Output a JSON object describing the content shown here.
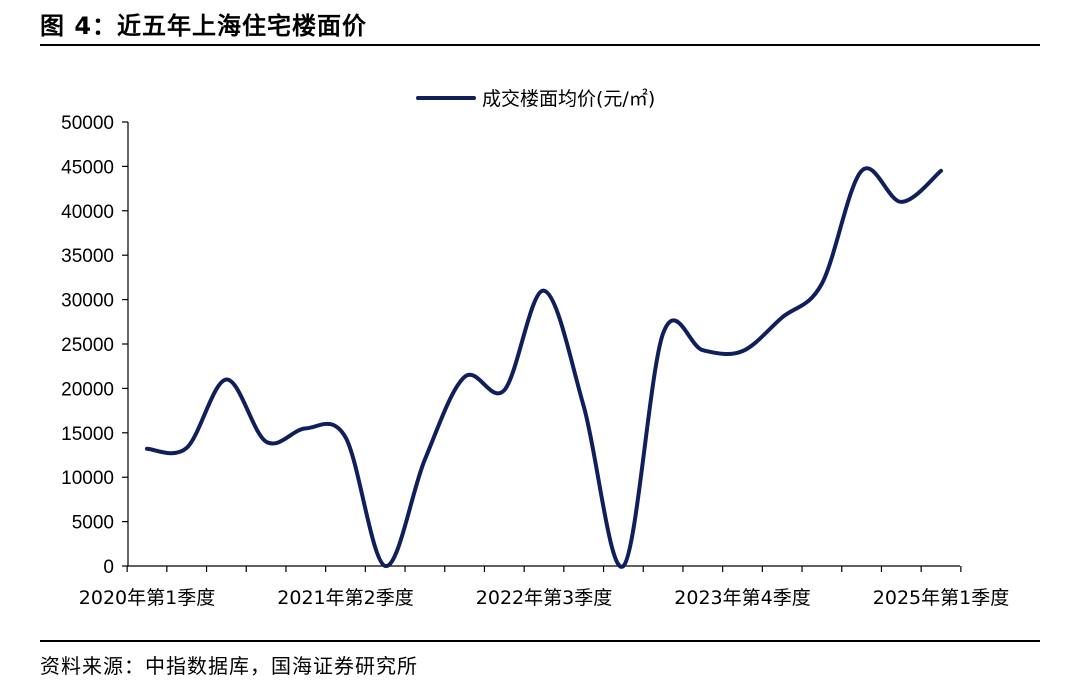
{
  "figure": {
    "title": "图 4：近五年上海住宅楼面价",
    "source": "资料来源：中指数据库，国海证券研究所"
  },
  "colors": {
    "series_line": "#0f1f5c",
    "axis": "#000000",
    "rule": "#000000"
  },
  "chart_data": {
    "type": "line",
    "title": "",
    "xlabel": "",
    "ylabel": "",
    "ylim": [
      0,
      50000
    ],
    "yticks": [
      0,
      5000,
      10000,
      15000,
      20000,
      25000,
      30000,
      35000,
      40000,
      45000,
      50000
    ],
    "grid": false,
    "legend_position": "top-center",
    "x_tick_labels": [
      {
        "index": 0,
        "label": "2020年第1季度"
      },
      {
        "index": 5,
        "label": "2021年第2季度"
      },
      {
        "index": 10,
        "label": "2022年第3季度"
      },
      {
        "index": 15,
        "label": "2023年第4季度"
      },
      {
        "index": 20,
        "label": "2025年第1季度"
      }
    ],
    "categories": [
      "2020年第1季度",
      "2020年第2季度",
      "2020年第3季度",
      "2020年第4季度",
      "2021年第1季度",
      "2021年第2季度",
      "2021年第3季度",
      "2021年第4季度",
      "2022年第1季度",
      "2022年第2季度",
      "2022年第3季度",
      "2022年第4季度",
      "2023年第1季度",
      "2023年第2季度",
      "2023年第3季度",
      "2023年第4季度",
      "2024年第1季度",
      "2024年第2季度",
      "2024年第3季度",
      "2024年第4季度",
      "2025年第1季度"
    ],
    "series": [
      {
        "name": "成交楼面均价(元/㎡)",
        "values": [
          13200,
          13300,
          21000,
          14000,
          15500,
          14500,
          0,
          12000,
          21300,
          19800,
          31000,
          18000,
          0,
          26200,
          24300,
          24200,
          28000,
          31800,
          44500,
          41000,
          44500
        ]
      }
    ]
  }
}
